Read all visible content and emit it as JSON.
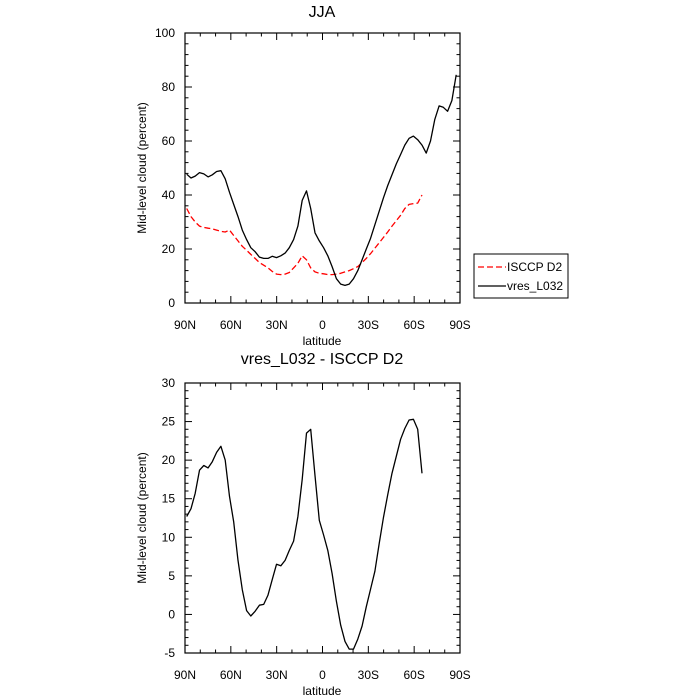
{
  "chart_data": [
    {
      "type": "line",
      "title": "JJA",
      "xlabel": "latitude",
      "ylabel": "Mid-level cloud (percent)",
      "xlim": [
        90,
        -90
      ],
      "ylim": [
        0,
        100
      ],
      "x_ticks": [
        90,
        60,
        30,
        0,
        -30,
        -60,
        -90
      ],
      "x_tick_labels": [
        "90N",
        "60N",
        "30N",
        "0",
        "30S",
        "60S",
        "90S"
      ],
      "y_ticks": [
        0,
        20,
        40,
        60,
        80,
        100
      ],
      "y_tick_labels": [
        "0",
        "20",
        "40",
        "60",
        "80",
        "100"
      ],
      "grid": false,
      "legend_position": "right, outside plot",
      "series": [
        {
          "name": "ISCCP D2",
          "color": "#ff0000",
          "dash": "dashed",
          "x": [
            88.9,
            86.1,
            83.3,
            80.5,
            77.7,
            74.9,
            72.1,
            69.3,
            66.5,
            63.7,
            60.9,
            58.1,
            55.3,
            52.5,
            49.7,
            46.9,
            44.1,
            41.3,
            38.5,
            35.7,
            32.9,
            30.1,
            27.3,
            24.5,
            21.7,
            18.9,
            16.1,
            13.3,
            10.5,
            7.7,
            4.9,
            2.1,
            -0.7,
            -3.5,
            -6.3,
            -9.1,
            -11.9,
            -14.7,
            -17.5,
            -20.3,
            -23.1,
            -25.9,
            -28.7,
            -31.5,
            -34.3,
            -37.1,
            -39.9,
            -42.7,
            -45.5,
            -48.3,
            -51.1,
            -53.9,
            -56.7,
            -59.5,
            -62.3,
            -65.1
          ],
          "values": [
            35,
            32,
            30,
            28.5,
            28,
            27.7,
            27.5,
            27,
            26.5,
            26.3,
            27,
            25,
            23,
            21,
            19.5,
            18,
            16.5,
            15,
            14,
            13,
            11.7,
            10.7,
            10.5,
            10.7,
            11.3,
            13,
            14.7,
            17.5,
            16,
            13,
            11.5,
            11,
            10.8,
            10.5,
            10.5,
            10.7,
            11,
            11.5,
            12,
            12.7,
            13.5,
            15,
            16.5,
            18.3,
            20.3,
            22.3,
            24.3,
            26.3,
            28.5,
            30.5,
            32.5,
            35,
            36.5,
            36.8,
            37,
            40
          ]
        },
        {
          "name": "vres_L032",
          "color": "#000000",
          "dash": "solid",
          "x": [
            88.9,
            86.1,
            83.3,
            80.5,
            77.7,
            74.9,
            72.1,
            69.3,
            66.5,
            63.7,
            60.9,
            58.1,
            55.3,
            52.5,
            49.7,
            46.9,
            44.1,
            41.3,
            38.5,
            35.7,
            32.9,
            30.1,
            27.3,
            24.5,
            21.7,
            18.9,
            16.1,
            13.3,
            10.5,
            7.7,
            4.9,
            2.1,
            -0.7,
            -3.5,
            -6.3,
            -9.1,
            -11.9,
            -14.7,
            -17.5,
            -20.3,
            -23.1,
            -25.9,
            -28.7,
            -31.5,
            -34.3,
            -37.1,
            -39.9,
            -42.7,
            -45.5,
            -48.3,
            -51.1,
            -53.9,
            -56.7,
            -59.5,
            -62.3,
            -65.1,
            -67.9,
            -70.7,
            -73.5,
            -76.3,
            -79.1,
            -81.9,
            -84.7,
            -87.5
          ],
          "values": [
            47.7,
            46.3,
            47,
            48.3,
            47.8,
            46.7,
            47.5,
            48.7,
            49,
            46,
            41,
            36.5,
            32,
            27,
            23.5,
            20.5,
            19,
            17,
            16.5,
            16.5,
            17.3,
            16.8,
            17.5,
            18.5,
            20.5,
            23.5,
            28.5,
            38,
            41.5,
            35,
            26,
            23,
            20.5,
            17.5,
            13.5,
            9,
            7,
            6.5,
            7,
            9,
            12,
            16,
            20,
            24,
            29,
            34,
            39,
            43.5,
            47.5,
            51.5,
            55,
            58.5,
            61,
            61.8,
            60.5,
            58.5,
            55.5,
            60,
            68,
            73,
            72.5,
            71,
            75,
            84.5
          ]
        }
      ]
    },
    {
      "type": "line",
      "title": "vres_L032 - ISCCP D2",
      "xlabel": "latitude",
      "ylabel": "Mid-level cloud (percent)",
      "xlim": [
        90,
        -90
      ],
      "ylim": [
        -5,
        30
      ],
      "x_ticks": [
        90,
        60,
        30,
        0,
        -30,
        -60,
        -90
      ],
      "x_tick_labels": [
        "90N",
        "60N",
        "30N",
        "0",
        "30S",
        "60S",
        "90S"
      ],
      "y_ticks": [
        -5,
        0,
        5,
        10,
        15,
        20,
        25,
        30
      ],
      "y_tick_labels": [
        "-5",
        "0",
        "5",
        "10",
        "15",
        "20",
        "25",
        "30"
      ],
      "grid": false,
      "series": [
        {
          "color": "#000000",
          "dash": "solid",
          "x": [
            88.9,
            86.1,
            83.3,
            80.5,
            77.7,
            74.9,
            72.1,
            69.3,
            66.5,
            63.7,
            60.9,
            58.1,
            55.3,
            52.5,
            49.7,
            46.9,
            44.1,
            41.3,
            38.5,
            35.7,
            32.9,
            30.1,
            27.3,
            24.5,
            21.7,
            18.9,
            16.1,
            13.3,
            10.5,
            7.7,
            4.9,
            2.1,
            -0.7,
            -3.5,
            -6.3,
            -9.1,
            -11.9,
            -14.7,
            -17.5,
            -20.3,
            -23.1,
            -25.9,
            -28.7,
            -31.5,
            -34.3,
            -37.1,
            -39.9,
            -42.7,
            -45.5,
            -48.3,
            -51.1,
            -53.9,
            -56.7,
            -59.5,
            -62.3,
            -65.1
          ],
          "values": [
            12.7,
            13.7,
            15.7,
            18.7,
            19.3,
            19,
            19.8,
            21,
            21.8,
            20,
            15.3,
            12,
            7,
            3.2,
            0.5,
            -0.2,
            0.4,
            1.2,
            1.3,
            2.5,
            4.5,
            6.5,
            6.3,
            7,
            8.3,
            9.5,
            12.7,
            17.5,
            23.5,
            24,
            18,
            12.2,
            10.3,
            8.3,
            5.3,
            1.7,
            -1.4,
            -3.5,
            -4.5,
            -4.5,
            -3.2,
            -1.5,
            1,
            3.3,
            5.6,
            9.2,
            12.6,
            15.5,
            18.3,
            20.5,
            22.7,
            24.1,
            25.2,
            25.3,
            24,
            18.3
          ]
        }
      ]
    }
  ]
}
